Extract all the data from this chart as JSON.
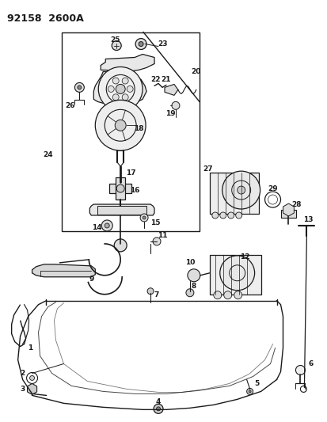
{
  "title": "92158  2600A",
  "bg_color": "#ffffff",
  "line_color": "#1a1a1a",
  "fig_width": 4.14,
  "fig_height": 5.33,
  "dpi": 100
}
